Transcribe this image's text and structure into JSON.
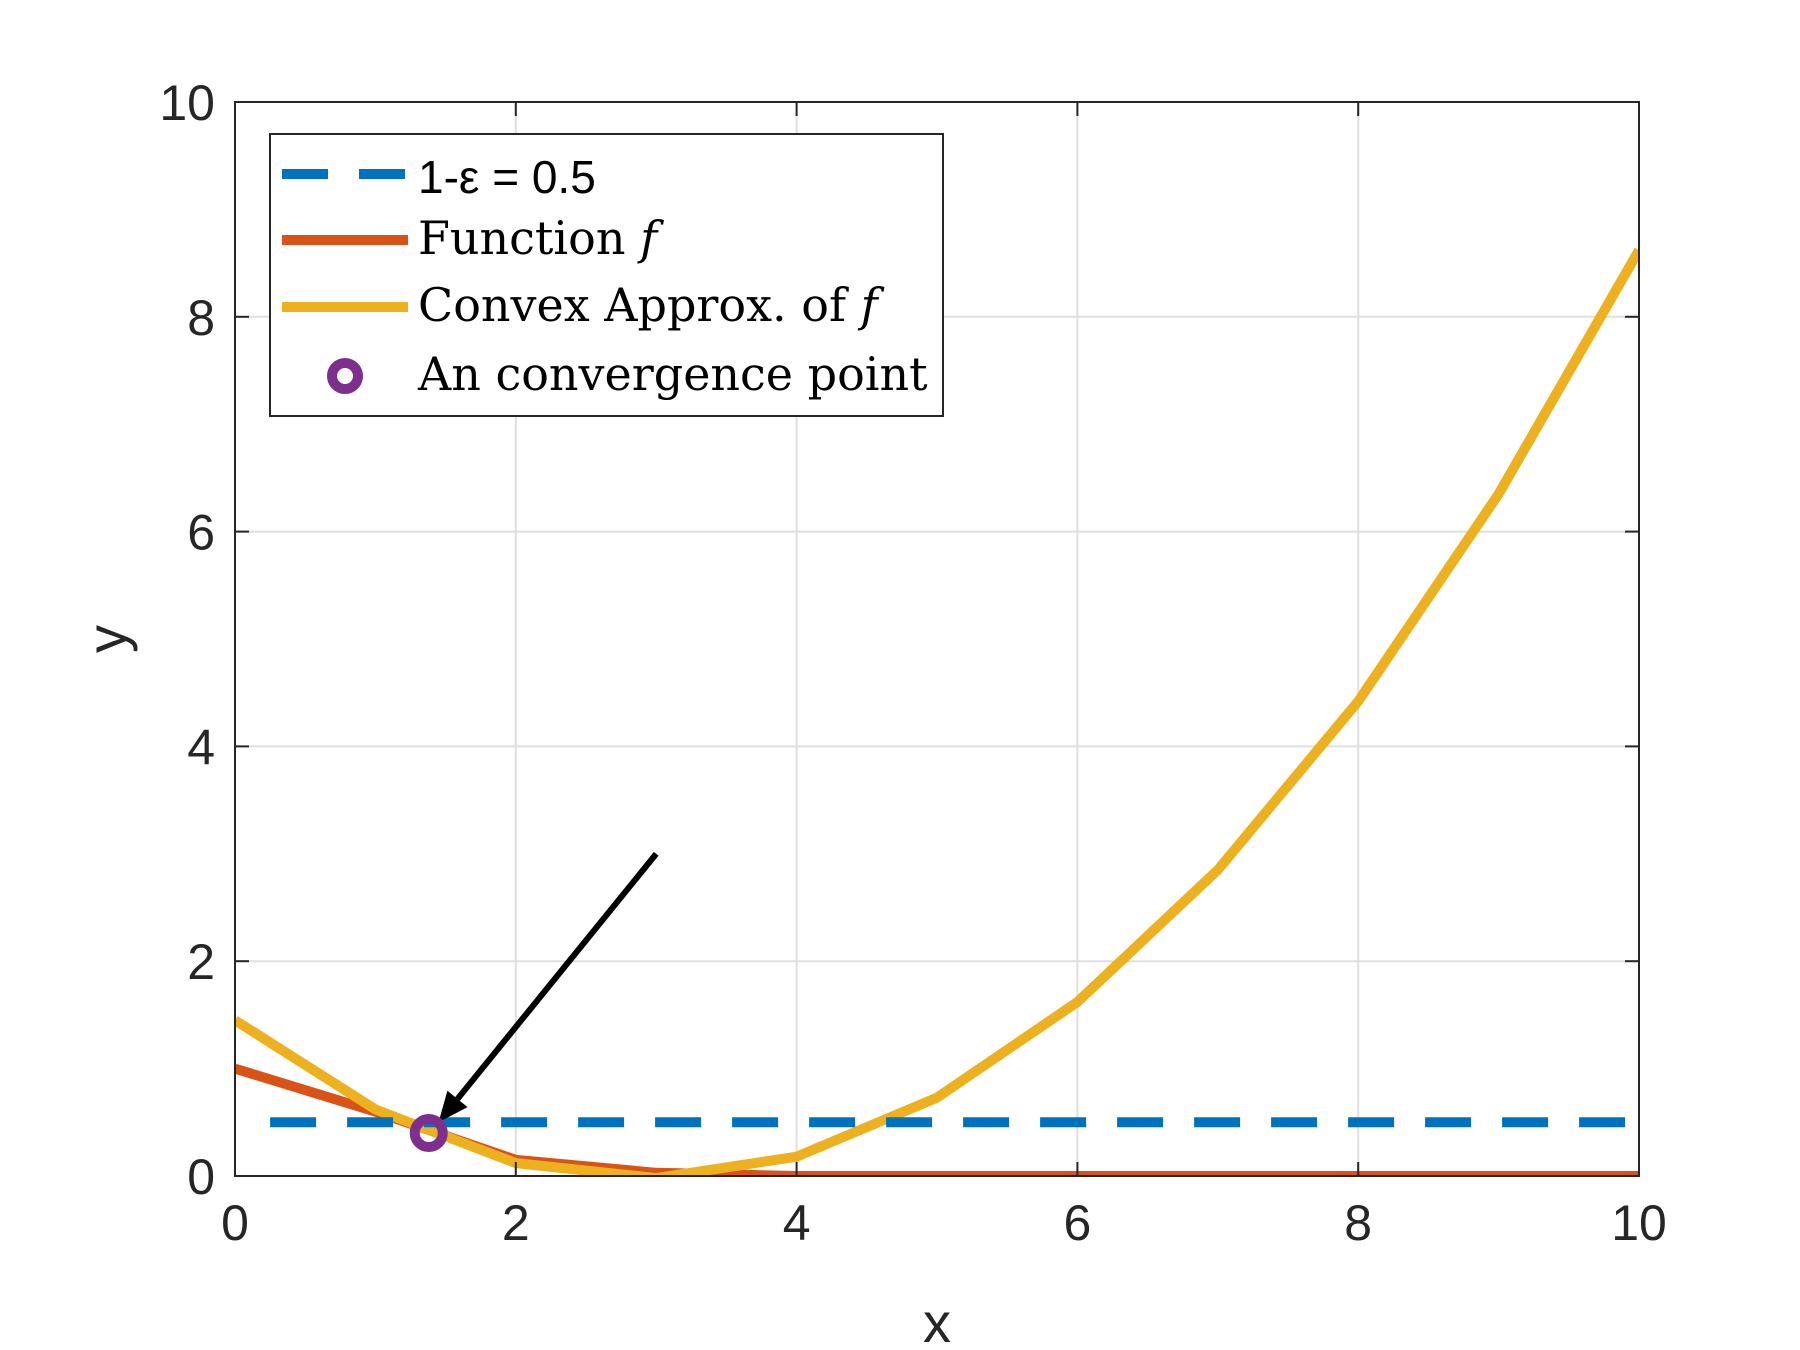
{
  "chart_data": {
    "type": "line",
    "xlabel": "x",
    "ylabel": "y",
    "xlim": [
      0,
      10
    ],
    "ylim": [
      0,
      10
    ],
    "xticks": [
      "0",
      "2",
      "4",
      "6",
      "8",
      "10"
    ],
    "yticks": [
      "0",
      "2",
      "4",
      "6",
      "8",
      "10"
    ],
    "grid": true,
    "legend_position": "top-left",
    "series": [
      {
        "name": "1-ε = 0.5",
        "style": "dashed",
        "color": "#0072BD",
        "x": [
          0.25,
          10
        ],
        "y": [
          0.5,
          0.5
        ]
      },
      {
        "name": "Function f",
        "style": "solid",
        "color": "#D95319",
        "x": [
          0,
          1,
          2,
          3,
          4,
          5,
          6,
          7,
          8,
          9,
          10
        ],
        "y": [
          1.0,
          0.6,
          0.15,
          0.03,
          0.0,
          0.0,
          0.0,
          0.0,
          0.0,
          0.0,
          0.0
        ]
      },
      {
        "name": "Convex Approx. of f",
        "style": "solid",
        "color": "#EDB120",
        "x": [
          0,
          1,
          2,
          3,
          4,
          5,
          6,
          7,
          8,
          9,
          10
        ],
        "y": [
          1.45,
          0.62,
          0.12,
          -0.02,
          0.18,
          0.73,
          1.62,
          2.85,
          4.42,
          6.35,
          8.62
        ]
      },
      {
        "name": "An convergence point",
        "style": "marker",
        "color": "#7E2F8E",
        "x": [
          1.38
        ],
        "y": [
          0.4
        ]
      }
    ],
    "annotations": [
      {
        "type": "arrow",
        "from": [
          3.0,
          3.0
        ],
        "to": [
          1.45,
          0.5
        ],
        "color": "#000000"
      }
    ]
  },
  "legend": {
    "dashed_label": "1-ε = 0.5",
    "function_label_text": "Function",
    "function_label_symbol": "f",
    "approx_label_text": "Convex Approx. of",
    "approx_label_symbol": "f",
    "point_label": "An convergence point"
  }
}
